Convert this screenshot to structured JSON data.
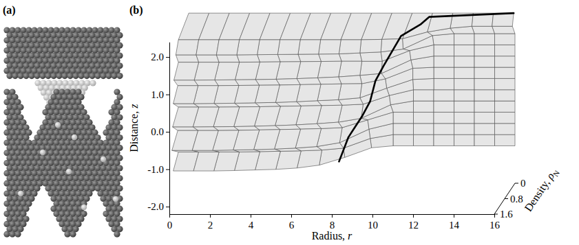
{
  "illustration": {
    "label": "(a)"
  },
  "chart_data": {
    "type": "surface",
    "annotations": [
      "(b)"
    ],
    "xlabel": "Radius, r",
    "ylabel": "Distance, z",
    "zlabel": "Density, ρN",
    "xlim": [
      0,
      16
    ],
    "xticks": [
      0,
      2,
      4,
      6,
      8,
      10,
      12,
      14,
      16
    ],
    "ylim": [
      -2.2,
      2.4
    ],
    "yticks": [
      {
        "value": -2,
        "label": "-2.0"
      },
      {
        "value": -1,
        "label": "-1.0"
      },
      {
        "value": 0,
        "label": "0.0"
      },
      {
        "value": 1,
        "label": "1.0"
      },
      {
        "value": 2,
        "label": "2.0"
      }
    ],
    "zlim": [
      0,
      1.6
    ],
    "zticks": [
      0,
      0.8,
      1.6
    ],
    "color": "#e6e6e6",
    "x": [
      0,
      1,
      2,
      3,
      4,
      5,
      6,
      7,
      8,
      9,
      10,
      11,
      12,
      13,
      14,
      15,
      16
    ],
    "y": [
      -1.2,
      -0.9,
      -0.6,
      -0.3,
      0,
      0.3,
      0.6,
      0.9,
      1.2,
      1.5,
      1.8,
      2.1,
      2.4
    ],
    "values": [
      [
        1.3,
        1.3,
        1.3,
        1.28,
        1.25,
        1.22,
        1.15,
        1.0,
        0.6,
        0.1,
        0,
        0,
        0,
        0,
        0,
        0,
        0
      ],
      [
        0.9,
        0.9,
        0.9,
        0.9,
        0.88,
        0.86,
        0.84,
        0.8,
        0.7,
        0.2,
        0,
        0,
        0,
        0,
        0,
        0,
        0
      ],
      [
        1.4,
        1.4,
        1.4,
        1.38,
        1.36,
        1.33,
        1.28,
        1.2,
        1.0,
        0.3,
        0,
        0,
        0,
        0,
        0,
        0,
        0
      ],
      [
        0.95,
        0.95,
        0.95,
        0.94,
        0.92,
        0.9,
        0.88,
        0.85,
        0.8,
        0.4,
        0,
        0,
        0,
        0,
        0,
        0,
        0
      ],
      [
        1.35,
        1.35,
        1.34,
        1.33,
        1.31,
        1.28,
        1.24,
        1.18,
        1.1,
        0.9,
        0.2,
        0,
        0,
        0,
        0,
        0,
        0
      ],
      [
        0.9,
        0.9,
        0.9,
        0.89,
        0.88,
        0.86,
        0.84,
        0.82,
        0.8,
        0.75,
        0.3,
        0,
        0,
        0,
        0,
        0,
        0
      ],
      [
        1.3,
        1.3,
        1.29,
        1.28,
        1.26,
        1.24,
        1.2,
        1.15,
        1.1,
        1.0,
        0.5,
        0.05,
        0,
        0,
        0,
        0,
        0
      ],
      [
        0.95,
        0.95,
        0.95,
        0.94,
        0.93,
        0.92,
        0.9,
        0.88,
        0.86,
        0.85,
        0.6,
        0.05,
        0,
        0,
        0,
        0,
        0
      ],
      [
        1.25,
        1.25,
        1.24,
        1.23,
        1.22,
        1.2,
        1.17,
        1.13,
        1.08,
        1.0,
        0.9,
        0.2,
        0,
        0,
        0,
        0,
        0
      ],
      [
        0.9,
        0.9,
        0.9,
        0.9,
        0.89,
        0.88,
        0.87,
        0.86,
        0.85,
        0.85,
        0.85,
        0.3,
        0,
        0,
        0,
        0,
        0
      ],
      [
        1.1,
        1.1,
        1.1,
        1.1,
        1.09,
        1.08,
        1.07,
        1.06,
        1.05,
        1.0,
        0.95,
        0.8,
        0.1,
        0,
        0,
        0,
        0
      ],
      [
        0.9,
        0.9,
        0.9,
        0.9,
        0.9,
        0.9,
        0.9,
        0.9,
        0.9,
        0.9,
        0.88,
        0.85,
        0.5,
        0.3,
        0.2,
        0.2,
        0.2
      ],
      [
        0.1,
        0.1,
        0.1,
        0.1,
        0.1,
        0.1,
        0.1,
        0.1,
        0.1,
        0.1,
        0.1,
        0.1,
        0.1,
        0.1,
        0.1,
        0.1,
        0.1
      ]
    ],
    "curve": {
      "x": [
        8.1,
        8.5,
        9.1,
        9.5,
        9.7,
        10.1,
        10.9,
        11.6,
        11.9,
        16
      ],
      "y": [
        -1.0,
        -0.4,
        0.1,
        0.5,
        1.0,
        1.4,
        2.15,
        2.25,
        2.35,
        2.4
      ],
      "values": [
        1.2,
        1.1,
        1.0,
        1.0,
        0.9,
        0.9,
        0.8,
        0.4,
        0.2,
        0.1
      ],
      "color": "#000000"
    }
  }
}
